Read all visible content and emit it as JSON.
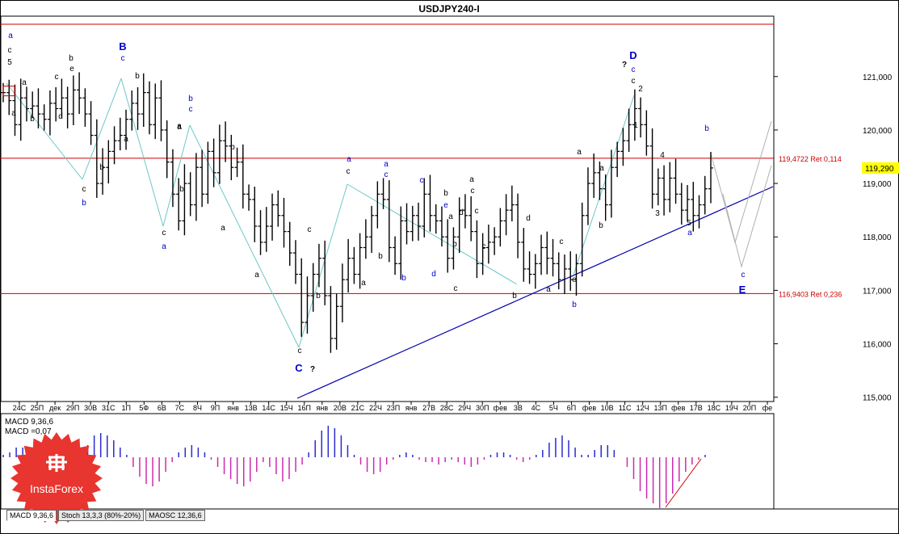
{
  "window": {
    "title": "USDJPY240-I"
  },
  "colors": {
    "background": "#ffffff",
    "price_bars": "#000000",
    "wave_blue": "#0000cc",
    "wave_black": "#000000",
    "resistance": "#cc0000",
    "trendline": "#0000aa",
    "projection": "#b0b0b0",
    "connector": "#6cc7c7",
    "macd_pos": "#2a2ad0",
    "macd_neg": "#cc2ab0",
    "logo_red": "#e8352f"
  },
  "chart_data": {
    "type": "line",
    "symbol": "USDJPY240-I",
    "y_ticks": [
      "121,000",
      "120,000",
      "119,000",
      "118,000",
      "117,000",
      "116,000",
      "115,000"
    ],
    "ylim": [
      114.95,
      122.1
    ],
    "current_price": "119,290",
    "x_tick_labels": [
      "24C",
      "25П",
      "дек",
      "29П",
      "30В",
      "31С",
      "1П",
      "5Ф",
      "6В",
      "7С",
      "8Ч",
      "9П",
      "янв",
      "13В",
      "14С",
      "15Ч",
      "16П",
      "янв",
      "20В",
      "21С",
      "22Ч",
      "23П",
      "янв",
      "27В",
      "28С",
      "29Ч",
      "30П",
      "фев",
      "3В",
      "4С",
      "5Ч",
      "6П",
      "фев",
      "10В",
      "11С",
      "12Ч",
      "13П",
      "фев",
      "17В",
      "18С",
      "19Ч",
      "20П",
      "фе"
    ],
    "levels": [
      {
        "label": "119,4722 Ret 0,114",
        "value": 119.4722
      },
      {
        "label": "116,9403 Ret 0,236",
        "value": 116.9403
      }
    ],
    "top_line": 121.98,
    "series": [
      {
        "values": [
          120.7,
          120.55,
          120.1,
          120.6,
          120.4,
          120.45,
          120.3,
          120.2,
          120.5,
          120.4,
          120.6,
          120.3,
          120.75,
          120.6,
          120.3,
          119.9,
          119.0,
          119.3,
          119.6,
          119.8,
          119.9,
          120.2,
          120.5,
          120.3,
          120.7,
          120.1,
          120.6,
          120.0,
          119.4,
          118.8,
          118.3,
          119.0,
          118.6,
          119.3,
          118.8,
          119.6,
          119.2,
          119.8,
          119.7,
          119.3,
          119.4,
          118.8,
          118.7,
          118.2,
          117.9,
          118.2,
          118.6,
          118.4,
          118.1,
          117.7,
          117.3,
          116.4,
          116.9,
          117.3,
          117.6,
          116.9,
          116.1,
          116.7,
          117.2,
          117.6,
          117.3,
          117.8,
          118.0,
          118.4,
          118.8,
          118.7,
          117.8,
          117.5,
          118.3,
          118.1,
          118.4,
          118.2,
          118.8,
          118.4,
          118.3,
          118.0,
          117.6,
          118.0,
          118.5,
          118.4,
          118.1,
          117.5,
          117.8,
          117.9,
          118.0,
          118.3,
          118.5,
          118.6,
          117.9,
          117.4,
          117.3,
          117.5,
          117.8,
          117.6,
          117.5,
          117.2,
          117.4,
          117.2,
          117.5,
          118.4,
          119.0,
          119.2,
          118.9,
          118.6,
          119.3,
          119.6,
          119.8,
          120.1,
          120.4,
          120.1,
          119.7,
          118.8,
          119.1,
          118.7,
          119.1,
          118.8,
          118.5,
          118.7,
          118.4,
          118.6,
          118.9,
          119.29
        ]
      }
    ],
    "macd": {
      "label": "MACD 9,36,6",
      "value_label": "MACD =0,07",
      "values": [
        0.05,
        0.1,
        0.2,
        0.2,
        0.15,
        0.1,
        0.05,
        -0.1,
        -0.2,
        -0.25,
        -0.15,
        -0.05,
        0.1,
        0.25,
        0.45,
        0.5,
        0.45,
        0.35,
        0.2,
        0.05,
        -0.2,
        -0.4,
        -0.55,
        -0.6,
        -0.5,
        -0.3,
        -0.1,
        0.1,
        0.2,
        0.25,
        0.2,
        0.1,
        -0.05,
        -0.2,
        -0.35,
        -0.45,
        -0.55,
        -0.6,
        -0.5,
        -0.3,
        -0.1,
        -0.2,
        -0.35,
        -0.5,
        -0.45,
        -0.3,
        -0.15,
        0.1,
        0.35,
        0.55,
        0.65,
        0.6,
        0.45,
        0.25,
        0.05,
        -0.15,
        -0.3,
        -0.35,
        -0.3,
        -0.15,
        -0.05,
        0.05,
        0.1,
        0.05,
        -0.05,
        -0.1,
        -0.1,
        -0.15,
        -0.1,
        -0.05,
        -0.1,
        -0.15,
        -0.2,
        -0.15,
        -0.05,
        0.05,
        0.1,
        0.1,
        0.05,
        -0.05,
        -0.1,
        -0.05,
        0.05,
        0.15,
        0.3,
        0.4,
        0.45,
        0.35,
        0.2,
        0.05,
        0.05,
        0.15,
        0.25,
        0.25,
        0.15,
        0.0,
        -0.2,
        -0.45,
        -0.7,
        -0.85,
        -0.95,
        -1.05,
        -0.95,
        -0.75,
        -0.5,
        -0.3,
        -0.15,
        -0.05,
        0.05
      ]
    }
  },
  "annotations": [
    {
      "text": "a",
      "color": "blue"
    },
    {
      "text": "c",
      "color": "black"
    },
    {
      "text": "5",
      "color": "black"
    },
    {
      "text": "a",
      "color": "black"
    },
    {
      "text": "a",
      "color": "black"
    },
    {
      "text": "b",
      "color": "black"
    },
    {
      "text": "c",
      "color": "black"
    },
    {
      "text": "d",
      "color": "black"
    },
    {
      "text": "e",
      "color": "black"
    },
    {
      "text": "b",
      "color": "black"
    },
    {
      "text": "B",
      "color": "blue"
    },
    {
      "text": "c",
      "color": "blue"
    },
    {
      "text": "b",
      "color": "black"
    },
    {
      "text": "a",
      "color": "black"
    },
    {
      "text": "a",
      "color": "black"
    },
    {
      "text": "b",
      "color": "black"
    },
    {
      "text": "c",
      "color": "black"
    },
    {
      "text": "b",
      "color": "blue"
    },
    {
      "text": "b",
      "color": "blue"
    },
    {
      "text": "c",
      "color": "blue"
    },
    {
      "text": "a",
      "color": "black"
    },
    {
      "text": "b",
      "color": "black"
    },
    {
      "text": "c",
      "color": "black"
    },
    {
      "text": "a",
      "color": "blue"
    },
    {
      "text": "b",
      "color": "black"
    },
    {
      "text": "a",
      "color": "black"
    },
    {
      "text": "a",
      "color": "black"
    },
    {
      "text": "c",
      "color": "black"
    },
    {
      "text": "c",
      "color": "black"
    },
    {
      "text": "C",
      "color": "blue"
    },
    {
      "text": "?",
      "color": "black"
    },
    {
      "text": "b",
      "color": "black"
    },
    {
      "text": "a",
      "color": "blue"
    },
    {
      "text": "c",
      "color": "black"
    },
    {
      "text": "a",
      "color": "black"
    },
    {
      "text": "a",
      "color": "blue"
    },
    {
      "text": "c",
      "color": "blue"
    },
    {
      "text": "b",
      "color": "black"
    },
    {
      "text": "b",
      "color": "blue"
    },
    {
      "text": "c",
      "color": "blue"
    },
    {
      "text": "e",
      "color": "blue"
    },
    {
      "text": "d",
      "color": "blue"
    },
    {
      "text": "b",
      "color": "black"
    },
    {
      "text": "c",
      "color": "black"
    },
    {
      "text": "a",
      "color": "black"
    },
    {
      "text": "b",
      "color": "black"
    },
    {
      "text": "c",
      "color": "black"
    },
    {
      "text": "d",
      "color": "black"
    },
    {
      "text": "c",
      "color": "black"
    },
    {
      "text": "a",
      "color": "black"
    },
    {
      "text": "c",
      "color": "black"
    },
    {
      "text": "b",
      "color": "black"
    },
    {
      "text": "a",
      "color": "black"
    },
    {
      "text": "d",
      "color": "black"
    },
    {
      "text": "c",
      "color": "black"
    },
    {
      "text": "e",
      "color": "black"
    },
    {
      "text": "b",
      "color": "blue"
    },
    {
      "text": "a",
      "color": "black"
    },
    {
      "text": "b",
      "color": "black"
    },
    {
      "text": "a",
      "color": "black"
    },
    {
      "text": "?",
      "color": "black"
    },
    {
      "text": "D",
      "color": "blue"
    },
    {
      "text": "c",
      "color": "blue"
    },
    {
      "text": "c",
      "color": "black"
    },
    {
      "text": "2",
      "color": "black"
    },
    {
      "text": "1",
      "color": "black"
    },
    {
      "text": "4",
      "color": "black"
    },
    {
      "text": "3",
      "color": "black"
    },
    {
      "text": "5",
      "color": "black"
    },
    {
      "text": "a",
      "color": "blue"
    },
    {
      "text": "b",
      "color": "blue"
    },
    {
      "text": "c",
      "color": "blue"
    },
    {
      "text": "E",
      "color": "blue"
    }
  ],
  "tabs": [
    "MACD 9,36,6",
    "Stoch 13,3,3 (80%-20%)",
    "MAOSC 12,36,6"
  ],
  "logo": {
    "text": "InstaForex"
  }
}
